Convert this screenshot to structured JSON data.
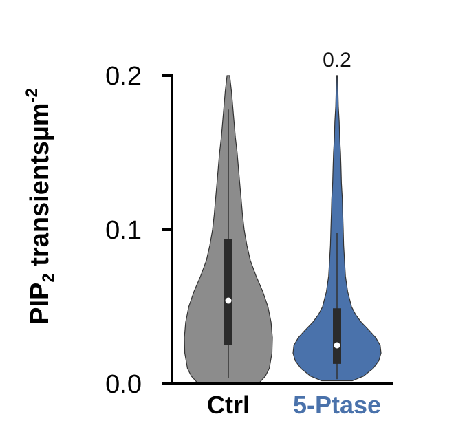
{
  "chart_data": {
    "type": "violin",
    "ylabel": {
      "prefix": "PIP",
      "subscript": "2",
      "middle": " transients",
      "unit": "µm",
      "superscript": "-2"
    },
    "ylim": [
      0.0,
      0.2
    ],
    "yticks": [
      {
        "value": 0.0,
        "label": "0.0"
      },
      {
        "value": 0.1,
        "label": "0.1"
      },
      {
        "value": 0.2,
        "label": "0.2"
      }
    ],
    "grid": false,
    "series": [
      {
        "name": "Ctrl",
        "color": "#8c8c8c",
        "label_color": "#000000",
        "whisker": [
          0.004,
          0.178
        ],
        "q1": 0.025,
        "q3": 0.094,
        "median": 0.054,
        "density": [
          [
            0.0,
            0.68
          ],
          [
            0.005,
            0.84
          ],
          [
            0.01,
            0.93
          ],
          [
            0.02,
            0.99
          ],
          [
            0.03,
            1.0
          ],
          [
            0.04,
            0.97
          ],
          [
            0.05,
            0.9
          ],
          [
            0.06,
            0.78
          ],
          [
            0.07,
            0.63
          ],
          [
            0.08,
            0.5
          ],
          [
            0.09,
            0.42
          ],
          [
            0.1,
            0.36
          ],
          [
            0.11,
            0.32
          ],
          [
            0.12,
            0.29
          ],
          [
            0.13,
            0.26
          ],
          [
            0.14,
            0.23
          ],
          [
            0.15,
            0.2
          ],
          [
            0.16,
            0.16
          ],
          [
            0.17,
            0.13
          ],
          [
            0.18,
            0.1
          ],
          [
            0.19,
            0.07
          ],
          [
            0.2,
            0.03
          ]
        ]
      },
      {
        "name": "5-Ptase",
        "color": "#4a72ab",
        "label_color": "#4a72ab",
        "whisker": [
          0.003,
          0.098
        ],
        "q1": 0.013,
        "q3": 0.049,
        "median": 0.025,
        "density": [
          [
            0.002,
            0.35
          ],
          [
            0.005,
            0.6
          ],
          [
            0.01,
            0.82
          ],
          [
            0.015,
            0.95
          ],
          [
            0.02,
            1.0
          ],
          [
            0.025,
            0.98
          ],
          [
            0.03,
            0.88
          ],
          [
            0.035,
            0.72
          ],
          [
            0.04,
            0.55
          ],
          [
            0.045,
            0.42
          ],
          [
            0.05,
            0.33
          ],
          [
            0.06,
            0.24
          ],
          [
            0.07,
            0.19
          ],
          [
            0.08,
            0.17
          ],
          [
            0.09,
            0.15
          ],
          [
            0.1,
            0.14
          ],
          [
            0.11,
            0.13
          ],
          [
            0.12,
            0.12
          ],
          [
            0.13,
            0.1
          ],
          [
            0.14,
            0.09
          ],
          [
            0.15,
            0.08
          ],
          [
            0.16,
            0.06
          ],
          [
            0.17,
            0.05
          ],
          [
            0.18,
            0.03
          ],
          [
            0.19,
            0.02
          ],
          [
            0.2,
            0.01
          ]
        ]
      }
    ],
    "annotations": [
      {
        "text": "0.2",
        "category": "5-Ptase"
      }
    ]
  }
}
